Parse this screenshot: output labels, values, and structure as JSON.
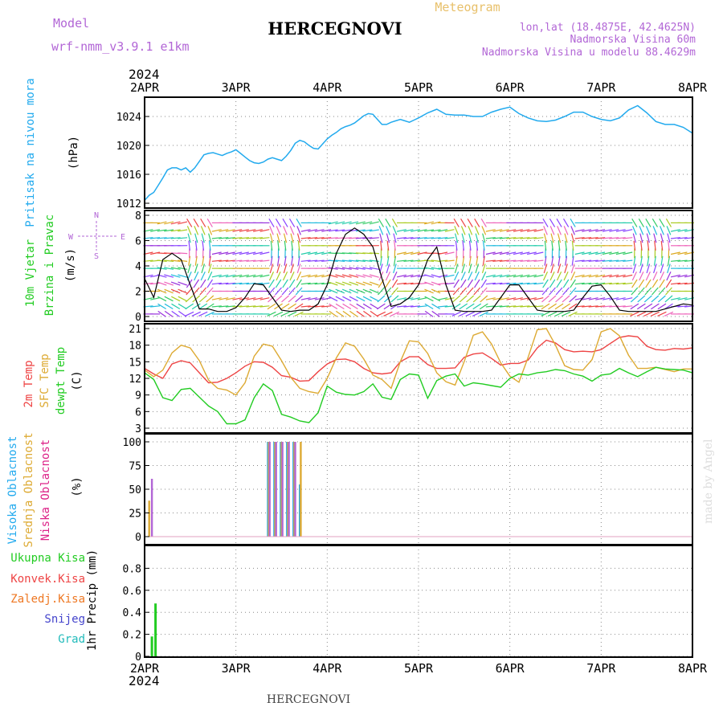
{
  "header": {
    "model_label": "Model",
    "model_name": "wrf-nmm_v3.9.1  e1km",
    "title": "HERCEGNOVI",
    "meteogram": "Meteogram",
    "coords": "lon,lat (18.4875E, 42.4625N)",
    "altitude": "Nadmorska Visina 60m",
    "model_altitude": "Nadmorska Visina u modelu 88.4629m"
  },
  "footer": {
    "station": "HERCEGNOVI",
    "credit": "made by Angel"
  },
  "colors": {
    "pressure": "#22aaee",
    "temp2m": "#ee4444",
    "sfc": "#ddaa33",
    "dew": "#22cc22",
    "title_purple": "#b266d6",
    "meteogram": "#e8c06a"
  },
  "chart_data": [
    {
      "type": "line",
      "year": "2024",
      "x_tick_labels": [
        "2APR",
        "3APR",
        "4APR",
        "5APR",
        "6APR",
        "7APR",
        "8APR"
      ],
      "ylabel": [
        "Pritisak na nivou mora",
        "(hPa)"
      ],
      "ylim": [
        1012,
        1026
      ],
      "y_ticks": [
        1012,
        1016,
        1020,
        1024
      ],
      "grid": true,
      "x_days": [
        0,
        0.05,
        0.1,
        0.15,
        0.2,
        0.25,
        0.3,
        0.35,
        0.4,
        0.45,
        0.5,
        0.55,
        0.6,
        0.65,
        0.7,
        0.75,
        0.8,
        0.85,
        0.9,
        0.95,
        1.0,
        1.05,
        1.1,
        1.15,
        1.2,
        1.25,
        1.3,
        1.35,
        1.4,
        1.45,
        1.5,
        1.55,
        1.6,
        1.65,
        1.7,
        1.75,
        1.8,
        1.85,
        1.9,
        1.95,
        2.0,
        2.05,
        2.1,
        2.15,
        2.2,
        2.25,
        2.3,
        2.35,
        2.4,
        2.45,
        2.5,
        2.55,
        2.6,
        2.65,
        2.7,
        2.75,
        2.8,
        2.85,
        2.9,
        2.95,
        3.0,
        3.1,
        3.2,
        3.3,
        3.4,
        3.5,
        3.6,
        3.7,
        3.8,
        3.9,
        4.0,
        4.1,
        4.2,
        4.3,
        4.4,
        4.5,
        4.6,
        4.7,
        4.8,
        4.9,
        5.0,
        5.1,
        5.2,
        5.3,
        5.4,
        5.5,
        5.6,
        5.7,
        5.8,
        5.9,
        6.0
      ],
      "series": [
        {
          "name": "",
          "values": [
            1012.4,
            1013.1,
            1013.5,
            1014.5,
            1015.5,
            1016.6,
            1016.9,
            1016.9,
            1016.6,
            1016.9,
            1016.3,
            1016.9,
            1017.8,
            1018.7,
            1018.9,
            1019.0,
            1018.8,
            1018.6,
            1018.9,
            1019.1,
            1019.4,
            1018.9,
            1018.4,
            1017.9,
            1017.6,
            1017.5,
            1017.7,
            1018.1,
            1018.3,
            1018.1,
            1017.9,
            1018.5,
            1019.3,
            1020.3,
            1020.7,
            1020.5,
            1020.0,
            1019.6,
            1019.5,
            1020.2,
            1020.9,
            1021.4,
            1021.8,
            1022.3,
            1022.6,
            1022.8,
            1023.1,
            1023.6,
            1024.1,
            1024.4,
            1024.3,
            1023.6,
            1022.9,
            1022.9,
            1023.2,
            1023.4,
            1023.6,
            1023.4,
            1023.2,
            1023.5,
            1023.8,
            1024.5,
            1025.0,
            1024.3,
            1024.2,
            1024.2,
            1024.0,
            1024.0,
            1024.6,
            1025.0,
            1025.3,
            1024.4,
            1023.8,
            1023.4,
            1023.3,
            1023.5,
            1024.0,
            1024.6,
            1024.6,
            1024.0,
            1023.6,
            1023.4,
            1023.8,
            1024.9,
            1025.5,
            1024.5,
            1023.3,
            1022.9,
            1022.9,
            1022.5,
            1021.7
          ]
        }
      ]
    },
    {
      "type": "line",
      "ylabel": [
        "10m Vjetar",
        "Brzina i Pravac",
        "(m/s)"
      ],
      "compass": {
        "n": "N",
        "s": "S",
        "w": "W",
        "e": "E"
      },
      "ylim": [
        0,
        8
      ],
      "y_ticks": [
        0,
        2,
        4,
        6,
        8
      ],
      "grid": true,
      "x_days": [
        0,
        0.1,
        0.2,
        0.3,
        0.4,
        0.5,
        0.6,
        0.7,
        0.8,
        0.9,
        1.0,
        1.1,
        1.2,
        1.3,
        1.4,
        1.5,
        1.6,
        1.7,
        1.8,
        1.9,
        2.0,
        2.1,
        2.2,
        2.3,
        2.4,
        2.5,
        2.6,
        2.7,
        2.8,
        2.9,
        3.0,
        3.1,
        3.2,
        3.3,
        3.4,
        3.5,
        3.6,
        3.7,
        3.8,
        3.9,
        4.0,
        4.1,
        4.2,
        4.3,
        4.4,
        4.5,
        4.6,
        4.7,
        4.8,
        4.9,
        5.0,
        5.1,
        5.2,
        5.3,
        5.4,
        5.5,
        5.6,
        5.7,
        5.8,
        5.9,
        6.0
      ],
      "series": [
        {
          "name": "",
          "values": [
            3.0,
            1.5,
            4.5,
            5.0,
            4.5,
            2.5,
            0.6,
            0.6,
            0.4,
            0.4,
            0.7,
            1.5,
            2.6,
            2.5,
            1.5,
            0.5,
            0.4,
            0.5,
            0.5,
            1.0,
            2.5,
            5.0,
            6.5,
            7.0,
            6.5,
            5.5,
            3.0,
            0.8,
            1.0,
            1.5,
            2.5,
            4.5,
            5.5,
            2.5,
            0.5,
            0.4,
            0.4,
            0.4,
            0.5,
            1.5,
            2.5,
            2.5,
            1.5,
            0.5,
            0.4,
            0.4,
            0.4,
            0.5,
            1.5,
            2.4,
            2.5,
            1.6,
            0.5,
            0.4,
            0.4,
            0.4,
            0.4,
            0.6,
            0.8,
            1.0,
            0.9
          ]
        }
      ]
    },
    {
      "type": "line",
      "ylabel": [
        "2m Temp",
        "SFC Temp",
        "dewpt Temp",
        "(C)"
      ],
      "ylim": [
        3,
        21
      ],
      "y_ticks": [
        3,
        6,
        9,
        12,
        15,
        18,
        21
      ],
      "grid": true,
      "x_days": [
        0,
        0.1,
        0.2,
        0.3,
        0.4,
        0.5,
        0.6,
        0.7,
        0.8,
        0.9,
        1.0,
        1.1,
        1.2,
        1.3,
        1.4,
        1.5,
        1.6,
        1.7,
        1.8,
        1.9,
        2.0,
        2.1,
        2.2,
        2.3,
        2.4,
        2.5,
        2.6,
        2.7,
        2.8,
        2.9,
        3.0,
        3.1,
        3.2,
        3.3,
        3.4,
        3.5,
        3.6,
        3.7,
        3.8,
        3.9,
        4.0,
        4.1,
        4.2,
        4.3,
        4.4,
        4.5,
        4.6,
        4.7,
        4.8,
        4.9,
        5.0,
        5.1,
        5.2,
        5.3,
        5.4,
        5.5,
        5.6,
        5.7,
        5.8,
        5.9,
        6.0
      ],
      "series": [
        {
          "name": "2m Temp",
          "values": [
            13.8,
            12.8,
            12.0,
            14.6,
            15.2,
            14.8,
            13.0,
            11.2,
            11.3,
            12.0,
            13.0,
            14.2,
            15.0,
            14.9,
            14.0,
            12.5,
            12.2,
            11.5,
            11.6,
            13.2,
            14.6,
            15.4,
            15.5,
            15.0,
            13.8,
            13.0,
            12.8,
            13.0,
            15.0,
            15.9,
            15.9,
            14.5,
            13.8,
            13.8,
            13.9,
            15.8,
            16.4,
            16.6,
            15.6,
            14.4,
            14.7,
            14.7,
            15.3,
            17.5,
            18.9,
            18.4,
            17.2,
            16.8,
            16.9,
            16.8,
            17.2,
            18.3,
            19.4,
            19.7,
            19.5,
            17.8,
            17.2,
            17.1,
            17.4,
            17.3,
            17.5
          ]
        },
        {
          "name": "SFC Temp",
          "values": [
            13.5,
            12.3,
            13.5,
            16.6,
            18.0,
            17.5,
            15.2,
            11.7,
            10.2,
            9.9,
            9.0,
            11.2,
            16.0,
            18.2,
            17.8,
            15.2,
            12.2,
            10.2,
            9.6,
            9.3,
            12.0,
            15.7,
            18.4,
            17.8,
            15.5,
            12.6,
            11.8,
            10.2,
            15.0,
            18.8,
            18.6,
            16.5,
            13.0,
            11.4,
            10.8,
            15.0,
            19.8,
            20.4,
            18.2,
            14.8,
            12.4,
            11.3,
            15.8,
            20.8,
            21.0,
            18.0,
            14.3,
            13.6,
            13.5,
            15.4,
            20.4,
            21.0,
            19.7,
            16.2,
            13.8,
            13.8,
            14.0,
            13.6,
            13.2,
            13.7,
            13.7
          ]
        },
        {
          "name": "dewpt Temp",
          "values": [
            13.0,
            11.8,
            8.5,
            8.0,
            10.0,
            10.2,
            8.6,
            7.0,
            6.0,
            3.8,
            3.8,
            4.5,
            8.5,
            11.0,
            9.8,
            5.5,
            5.0,
            4.3,
            4.0,
            5.8,
            10.6,
            9.5,
            9.1,
            9.0,
            9.6,
            11.0,
            8.6,
            8.2,
            11.8,
            12.8,
            12.6,
            8.4,
            11.6,
            12.4,
            12.8,
            10.6,
            11.2,
            11.0,
            10.7,
            10.4,
            12.0,
            12.8,
            12.6,
            13.0,
            13.2,
            13.6,
            13.4,
            12.8,
            12.4,
            11.5,
            12.6,
            12.8,
            13.8,
            13.0,
            12.3,
            13.2,
            14.0,
            13.7,
            13.6,
            13.5,
            13.0
          ]
        }
      ]
    },
    {
      "type": "bar",
      "ylabel": [
        "Visoka Oblacnost",
        "Srednja Oblacnost",
        "Niska Oblacnost",
        "(%)"
      ],
      "ylim": [
        0,
        100
      ],
      "y_ticks": [
        0,
        25,
        50,
        75,
        100
      ],
      "grid": true,
      "series": [
        {
          "name": "Visoka Oblacnost",
          "x_days": [
            1.35,
            1.42,
            1.49,
            1.56,
            1.63,
            1.7
          ],
          "values": [
            100,
            100,
            100,
            100,
            100,
            55
          ]
        },
        {
          "name": "Srednja Oblacnost",
          "x_days": [
            0.05,
            1.36,
            1.43,
            1.5,
            1.57,
            1.64,
            1.71
          ],
          "values": [
            38,
            100,
            100,
            100,
            100,
            100,
            100
          ]
        },
        {
          "name": "Niska Oblacnost",
          "x_days": [
            0.08,
            1.37,
            1.44,
            1.51,
            1.58,
            1.65
          ],
          "values": [
            61,
            100,
            100,
            100,
            100,
            100
          ]
        }
      ]
    },
    {
      "type": "bar",
      "ylabel": [
        "1hr Precip (mm)"
      ],
      "legend": [
        "Ukupna Kisa",
        "Konvek.Kisa",
        "Zaledj.Kisa",
        "Snijeg",
        "Grad"
      ],
      "legend_colors": [
        "#22cc22",
        "#ee4444",
        "#ee7722",
        "#4444cc",
        "#22bbbb"
      ],
      "ylim": [
        0,
        1.0
      ],
      "y_ticks": [
        0,
        0.2,
        0.4,
        0.6,
        0.8
      ],
      "grid": true,
      "x_days": [
        0.08,
        0.12
      ],
      "values": [
        0.18,
        0.48
      ]
    }
  ]
}
